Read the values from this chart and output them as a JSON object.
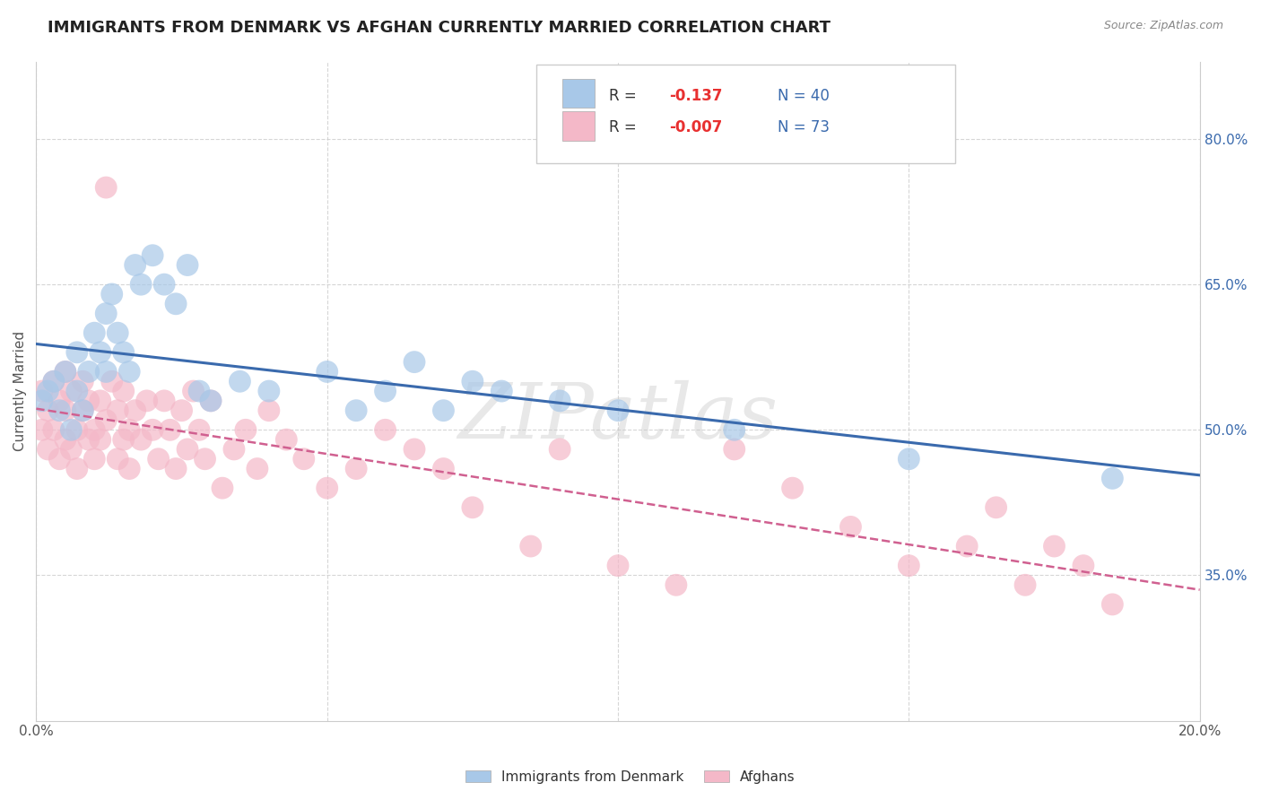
{
  "title": "IMMIGRANTS FROM DENMARK VS AFGHAN CURRENTLY MARRIED CORRELATION CHART",
  "source": "Source: ZipAtlas.com",
  "ylabel": "Currently Married",
  "xlim": [
    0.0,
    0.2
  ],
  "ylim": [
    0.2,
    0.88
  ],
  "right_yticks": [
    0.35,
    0.5,
    0.65,
    0.8
  ],
  "right_yticklabels": [
    "35.0%",
    "50.0%",
    "65.0%",
    "80.0%"
  ],
  "blue_color": "#a8c8e8",
  "pink_color": "#f4b8c8",
  "blue_line_color": "#3a6aad",
  "pink_line_color": "#d06090",
  "watermark": "ZIPatlas",
  "legend_r1_label": "R = ",
  "legend_r1_val": "-0.137",
  "legend_r1_n": "N = 40",
  "legend_r2_label": "R = ",
  "legend_r2_val": "-0.007",
  "legend_r2_n": "N = 73",
  "bottom_label1": "Immigrants from Denmark",
  "bottom_label2": "Afghans",
  "denmark_x": [
    0.001,
    0.002,
    0.003,
    0.004,
    0.005,
    0.006,
    0.007,
    0.007,
    0.008,
    0.009,
    0.01,
    0.011,
    0.012,
    0.012,
    0.013,
    0.014,
    0.015,
    0.016,
    0.017,
    0.018,
    0.02,
    0.022,
    0.024,
    0.026,
    0.028,
    0.03,
    0.035,
    0.04,
    0.05,
    0.055,
    0.06,
    0.065,
    0.07,
    0.075,
    0.08,
    0.09,
    0.1,
    0.12,
    0.15,
    0.185
  ],
  "denmark_y": [
    0.53,
    0.54,
    0.55,
    0.52,
    0.56,
    0.5,
    0.58,
    0.54,
    0.52,
    0.56,
    0.6,
    0.58,
    0.62,
    0.56,
    0.64,
    0.6,
    0.58,
    0.56,
    0.67,
    0.65,
    0.68,
    0.65,
    0.63,
    0.67,
    0.54,
    0.53,
    0.55,
    0.54,
    0.56,
    0.52,
    0.54,
    0.57,
    0.52,
    0.55,
    0.54,
    0.53,
    0.52,
    0.5,
    0.47,
    0.45
  ],
  "afghan_x": [
    0.001,
    0.001,
    0.002,
    0.002,
    0.003,
    0.003,
    0.004,
    0.004,
    0.005,
    0.005,
    0.005,
    0.006,
    0.006,
    0.007,
    0.007,
    0.008,
    0.008,
    0.009,
    0.009,
    0.01,
    0.01,
    0.011,
    0.011,
    0.012,
    0.012,
    0.013,
    0.014,
    0.014,
    0.015,
    0.015,
    0.016,
    0.016,
    0.017,
    0.018,
    0.019,
    0.02,
    0.021,
    0.022,
    0.023,
    0.024,
    0.025,
    0.026,
    0.027,
    0.028,
    0.029,
    0.03,
    0.032,
    0.034,
    0.036,
    0.038,
    0.04,
    0.043,
    0.046,
    0.05,
    0.055,
    0.06,
    0.065,
    0.07,
    0.075,
    0.085,
    0.09,
    0.1,
    0.11,
    0.12,
    0.13,
    0.14,
    0.15,
    0.16,
    0.165,
    0.17,
    0.175,
    0.18,
    0.185
  ],
  "afghan_y": [
    0.5,
    0.54,
    0.48,
    0.52,
    0.5,
    0.55,
    0.47,
    0.53,
    0.49,
    0.52,
    0.56,
    0.48,
    0.54,
    0.5,
    0.46,
    0.52,
    0.55,
    0.49,
    0.53,
    0.5,
    0.47,
    0.53,
    0.49,
    0.75,
    0.51,
    0.55,
    0.47,
    0.52,
    0.49,
    0.54,
    0.5,
    0.46,
    0.52,
    0.49,
    0.53,
    0.5,
    0.47,
    0.53,
    0.5,
    0.46,
    0.52,
    0.48,
    0.54,
    0.5,
    0.47,
    0.53,
    0.44,
    0.48,
    0.5,
    0.46,
    0.52,
    0.49,
    0.47,
    0.44,
    0.46,
    0.5,
    0.48,
    0.46,
    0.42,
    0.38,
    0.48,
    0.36,
    0.34,
    0.48,
    0.44,
    0.4,
    0.36,
    0.38,
    0.42,
    0.34,
    0.38,
    0.36,
    0.32
  ]
}
